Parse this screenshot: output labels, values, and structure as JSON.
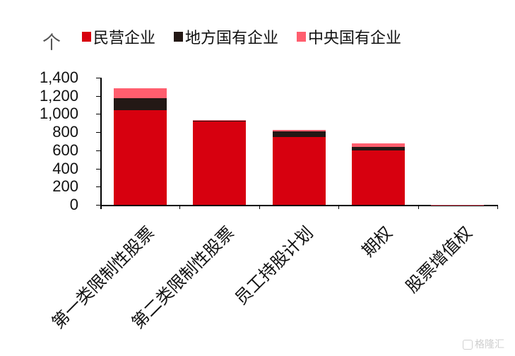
{
  "chart_data": {
    "type": "bar",
    "stacked": true,
    "title": "",
    "unit_label": "个",
    "xlabel": "",
    "ylabel": "个",
    "ylim": [
      0,
      1400
    ],
    "yticks": [
      0,
      200,
      400,
      600,
      800,
      1000,
      1200,
      1400
    ],
    "ytick_labels": [
      "0",
      "200",
      "400",
      "600",
      "800",
      "1,000",
      "1,200",
      "1,400"
    ],
    "grid": false,
    "legend_position": "top",
    "categories": [
      "第一类限制性股票",
      "第二类限制性股票",
      "员工持股计划",
      "期权",
      "股票增值权"
    ],
    "series": [
      {
        "name": "民营企业",
        "color": "#D7000F",
        "values": [
          1040,
          918,
          745,
          600,
          2
        ]
      },
      {
        "name": "地方国有企业",
        "color": "#231815",
        "values": [
          134,
          17,
          63,
          40,
          0
        ]
      },
      {
        "name": "中央国有企业",
        "color": "#FF5E6E",
        "values": [
          109,
          2,
          14,
          37,
          1
        ]
      }
    ]
  },
  "legend": [
    {
      "label": "民营企业",
      "color": "#D7000F"
    },
    {
      "label": "地方国有企业",
      "color": "#231815"
    },
    {
      "label": "中央国有企业",
      "color": "#FF5E6E"
    }
  ],
  "watermark": "格隆汇"
}
